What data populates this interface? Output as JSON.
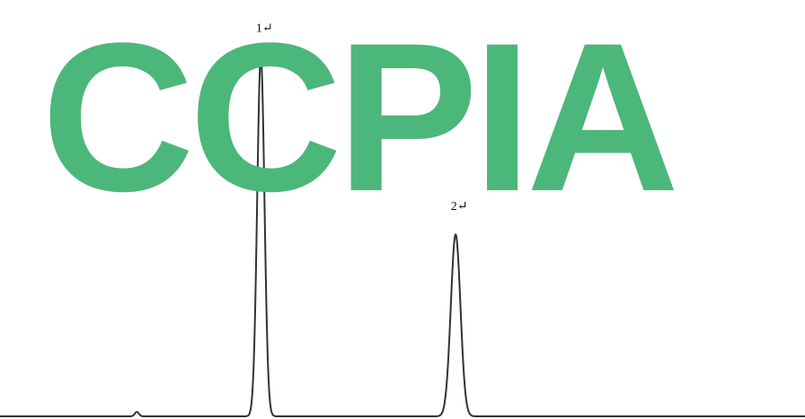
{
  "chart_data": {
    "type": "line",
    "title": "",
    "xlabel": "",
    "ylabel": "",
    "x_range": [
      0,
      100
    ],
    "y_range": [
      0,
      100
    ],
    "grid": false,
    "baseline_y": 0,
    "peaks": [
      {
        "label": "1↵",
        "x": 32.4,
        "height": 97,
        "width": 0.45
      },
      {
        "label": "2↵",
        "x": 56.6,
        "height": 49,
        "width": 0.6
      }
    ],
    "minor_bumps": [
      {
        "x": 17.0,
        "height": 1.2,
        "width": 0.25
      }
    ],
    "line_color": "#333333"
  },
  "watermark": {
    "text": "CCPIA",
    "color": "#4cb77a"
  }
}
